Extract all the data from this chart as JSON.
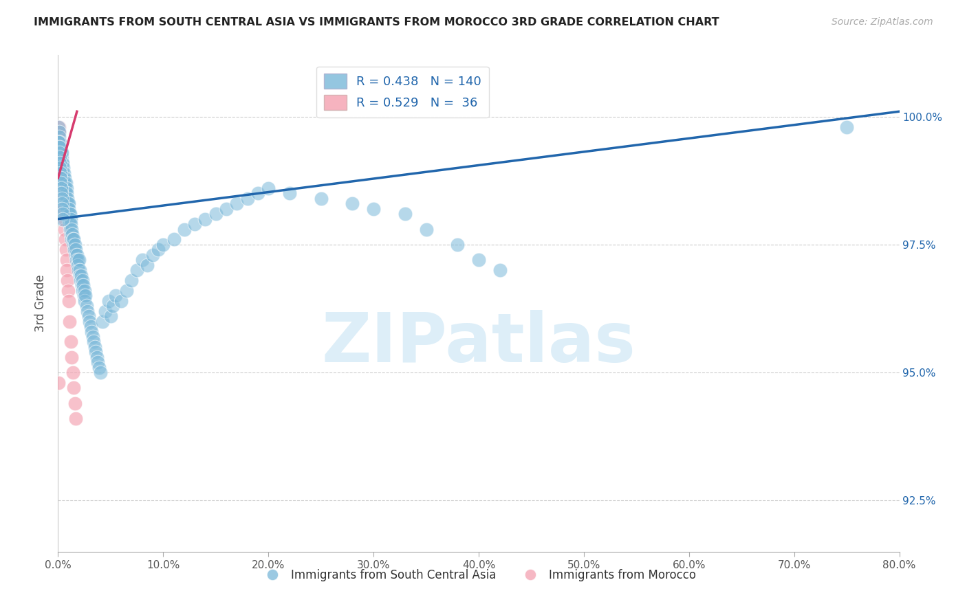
{
  "title": "IMMIGRANTS FROM SOUTH CENTRAL ASIA VS IMMIGRANTS FROM MOROCCO 3RD GRADE CORRELATION CHART",
  "source": "Source: ZipAtlas.com",
  "ylabel": "3rd Grade",
  "xlim": [
    0.0,
    80.0
  ],
  "ylim": [
    91.5,
    101.2
  ],
  "yticks": [
    92.5,
    95.0,
    97.5,
    100.0
  ],
  "xticks": [
    0.0,
    10.0,
    20.0,
    30.0,
    40.0,
    50.0,
    60.0,
    70.0,
    80.0
  ],
  "blue_R": 0.438,
  "blue_N": 140,
  "pink_R": 0.529,
  "pink_N": 36,
  "blue_color": "#7ab8d9",
  "pink_color": "#f4a0b0",
  "blue_line_color": "#2166ac",
  "pink_line_color": "#d63b6e",
  "watermark": "ZIPatlas",
  "watermark_color": "#ddeef8",
  "legend_label_blue": "Immigrants from South Central Asia",
  "legend_label_pink": "Immigrants from Morocco",
  "background_color": "#ffffff",
  "blue_x": [
    0.05,
    0.08,
    0.1,
    0.12,
    0.15,
    0.18,
    0.2,
    0.22,
    0.25,
    0.28,
    0.3,
    0.32,
    0.35,
    0.38,
    0.4,
    0.42,
    0.45,
    0.48,
    0.5,
    0.55,
    0.58,
    0.6,
    0.62,
    0.65,
    0.68,
    0.7,
    0.72,
    0.75,
    0.78,
    0.8,
    0.82,
    0.85,
    0.88,
    0.9,
    0.92,
    0.95,
    0.98,
    1.0,
    1.02,
    1.05,
    1.08,
    1.1,
    1.12,
    1.15,
    1.18,
    1.2,
    1.22,
    1.25,
    1.28,
    1.3,
    1.35,
    1.4,
    1.45,
    1.5,
    1.55,
    1.6,
    1.65,
    1.7,
    1.75,
    1.8,
    1.85,
    1.9,
    1.95,
    2.0,
    2.05,
    2.1,
    2.15,
    2.2,
    2.25,
    2.3,
    2.35,
    2.4,
    2.45,
    2.5,
    2.55,
    2.6,
    2.7,
    2.8,
    2.9,
    3.0,
    3.1,
    3.2,
    3.3,
    3.4,
    3.5,
    3.6,
    3.7,
    3.8,
    3.9,
    4.0,
    4.2,
    4.5,
    4.8,
    5.0,
    5.2,
    5.5,
    6.0,
    6.5,
    7.0,
    7.5,
    8.0,
    8.5,
    9.0,
    9.5,
    10.0,
    11.0,
    12.0,
    13.0,
    14.0,
    15.0,
    16.0,
    17.0,
    18.0,
    19.0,
    20.0,
    22.0,
    25.0,
    28.0,
    30.0,
    33.0,
    35.0,
    38.0,
    40.0,
    42.0,
    0.06,
    0.09,
    0.11,
    0.14,
    0.16,
    0.19,
    0.21,
    0.24,
    0.26,
    0.29,
    0.31,
    0.34,
    0.36,
    0.39,
    0.41,
    0.44,
    75.0
  ],
  "blue_y": [
    99.8,
    99.7,
    99.6,
    99.5,
    99.4,
    99.3,
    99.5,
    99.2,
    99.4,
    99.1,
    99.3,
    99.0,
    99.2,
    99.1,
    99.3,
    98.9,
    99.1,
    98.8,
    99.0,
    98.9,
    98.7,
    98.8,
    98.6,
    98.7,
    98.5,
    98.6,
    98.5,
    98.7,
    98.4,
    98.6,
    98.3,
    98.5,
    98.2,
    98.4,
    98.2,
    98.3,
    98.1,
    98.3,
    98.0,
    98.2,
    98.0,
    98.1,
    97.9,
    98.1,
    97.8,
    98.0,
    97.7,
    97.9,
    97.6,
    97.8,
    97.7,
    97.6,
    97.5,
    97.6,
    97.4,
    97.5,
    97.3,
    97.4,
    97.2,
    97.3,
    97.2,
    97.1,
    97.0,
    97.2,
    97.0,
    96.9,
    96.8,
    96.9,
    96.7,
    96.8,
    96.6,
    96.7,
    96.5,
    96.6,
    96.4,
    96.5,
    96.3,
    96.2,
    96.1,
    96.0,
    95.9,
    95.8,
    95.7,
    95.6,
    95.5,
    95.4,
    95.3,
    95.2,
    95.1,
    95.0,
    96.0,
    96.2,
    96.4,
    96.1,
    96.3,
    96.5,
    96.4,
    96.6,
    96.8,
    97.0,
    97.2,
    97.1,
    97.3,
    97.4,
    97.5,
    97.6,
    97.8,
    97.9,
    98.0,
    98.1,
    98.2,
    98.3,
    98.4,
    98.5,
    98.6,
    98.5,
    98.4,
    98.3,
    98.2,
    98.1,
    97.8,
    97.5,
    97.2,
    97.0,
    99.5,
    99.4,
    99.3,
    99.2,
    99.1,
    99.0,
    98.9,
    98.8,
    98.7,
    98.6,
    98.5,
    98.4,
    98.3,
    98.2,
    98.1,
    98.0,
    99.8
  ],
  "pink_x": [
    0.05,
    0.08,
    0.1,
    0.12,
    0.15,
    0.18,
    0.2,
    0.22,
    0.25,
    0.28,
    0.3,
    0.32,
    0.35,
    0.38,
    0.4,
    0.42,
    0.45,
    0.5,
    0.55,
    0.6,
    0.65,
    0.7,
    0.75,
    0.8,
    0.85,
    0.9,
    0.95,
    1.0,
    1.1,
    1.2,
    1.3,
    1.4,
    1.5,
    1.6,
    1.7,
    0.07
  ],
  "pink_y": [
    99.6,
    99.8,
    99.5,
    99.7,
    99.4,
    99.3,
    99.2,
    99.1,
    99.3,
    99.0,
    99.2,
    98.9,
    99.1,
    98.8,
    99.0,
    98.7,
    98.6,
    98.5,
    98.2,
    98.0,
    97.8,
    97.6,
    97.4,
    97.2,
    97.0,
    96.8,
    96.6,
    96.4,
    96.0,
    95.6,
    95.3,
    95.0,
    94.7,
    94.4,
    94.1,
    94.8
  ],
  "blue_trend_x": [
    0.0,
    80.0
  ],
  "blue_trend_y": [
    98.0,
    100.1
  ],
  "pink_trend_x": [
    0.0,
    1.8
  ],
  "pink_trend_y": [
    98.8,
    100.1
  ]
}
